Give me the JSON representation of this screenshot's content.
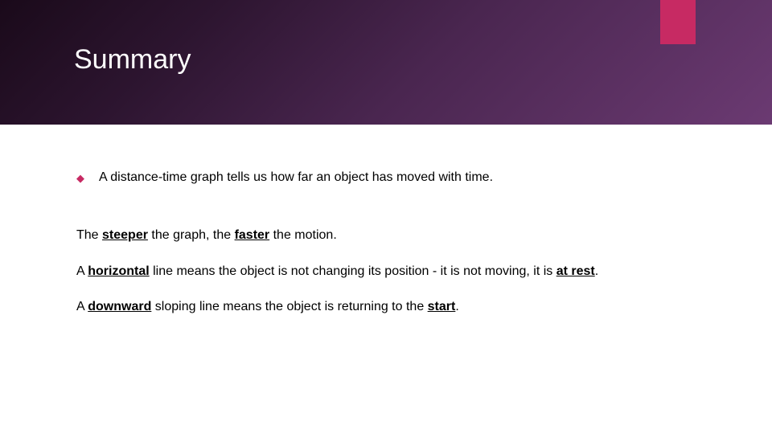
{
  "header": {
    "title": "Summary",
    "accent_color": "#c72a63",
    "gradient_start": "#1a0a1a",
    "gradient_end": "#6b3a72",
    "title_color": "#ffffff",
    "title_fontsize": 34
  },
  "content": {
    "bullet_color": "#c72a63",
    "text_color": "#000000",
    "fontsize": 16,
    "bullet1": {
      "text": "A distance-time graph tells us how far an object has moved with time."
    },
    "para1": {
      "pre": "The ",
      "u1": "steeper",
      "mid": " the graph, the ",
      "u2": "faster",
      "post": " the motion."
    },
    "para2": {
      "pre": "A ",
      "u1": "horizontal",
      "mid": " line means the object is not changing its position - it is not moving, it is ",
      "u2": "at rest",
      "post": "."
    },
    "para3": {
      "pre": "A ",
      "u1": "downward",
      "mid": " sloping line means the object is returning to the ",
      "u2": "start",
      "post": "."
    }
  }
}
